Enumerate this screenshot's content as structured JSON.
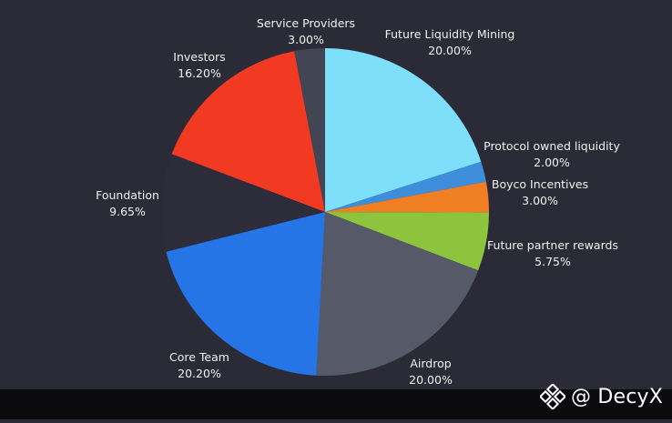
{
  "chart_data": {
    "type": "pie",
    "start_angle_deg": 0,
    "direction": "clockwise",
    "slices": [
      {
        "label": "Future Liquidity Mining",
        "value": 20.0,
        "display": "20.00%",
        "color": "#7ddff9"
      },
      {
        "label": "Protocol owned liquidity",
        "value": 2.0,
        "display": "2.00%",
        "color": "#3e8edb"
      },
      {
        "label": "Boyco Incentives",
        "value": 3.0,
        "display": "3.00%",
        "color": "#f07f24"
      },
      {
        "label": "Future partner rewards",
        "value": 5.75,
        "display": "5.75%",
        "color": "#8cc43d"
      },
      {
        "label": "Airdrop",
        "value": 20.0,
        "display": "20.00%",
        "color": "#565a68"
      },
      {
        "label": "Core Team",
        "value": 20.2,
        "display": "20.20%",
        "color": "#2575e6"
      },
      {
        "label": "Foundation",
        "value": 9.65,
        "display": "9.65%",
        "color": "#2c2c3a"
      },
      {
        "label": "Investors",
        "value": 16.2,
        "display": "16.20%",
        "color": "#f23a23"
      },
      {
        "label": "Service Providers",
        "value": 3.0,
        "display": "3.00%",
        "color": "#424554"
      }
    ]
  },
  "watermark": {
    "text": "@ DecyX",
    "icon": "binance-diamond-logo"
  }
}
